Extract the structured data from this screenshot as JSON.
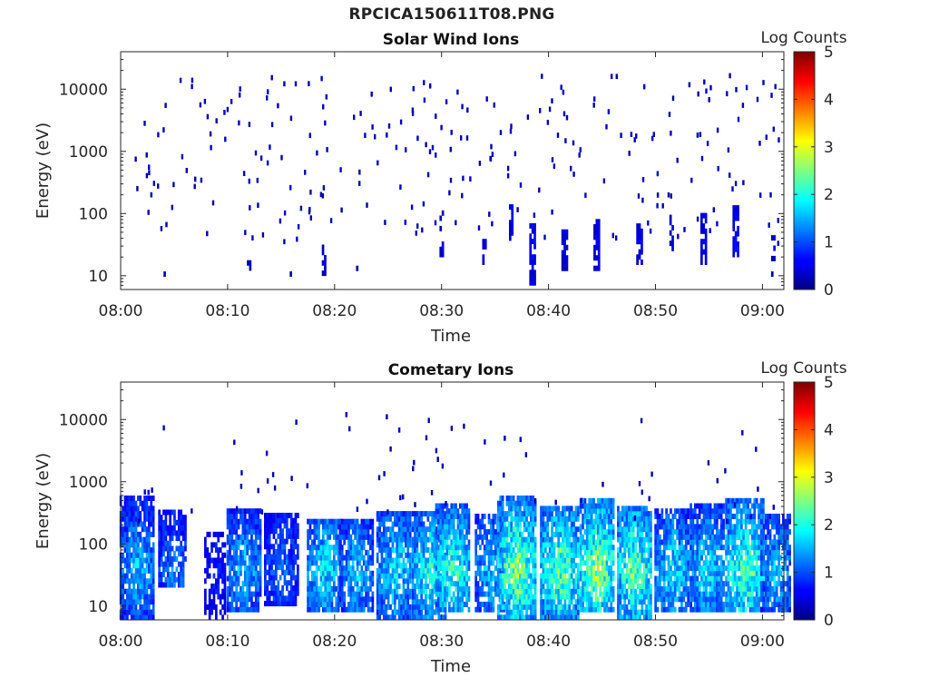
{
  "figure": {
    "title": "RPCICA150611T08.PNG"
  },
  "colors": {
    "jet_low": "#00007f",
    "jet_high": "#7f0000",
    "axis": "#262626",
    "background": "#ffffff"
  },
  "chart_data": [
    {
      "type": "heatmap",
      "title": "Solar Wind Ions",
      "xlabel": "Time",
      "ylabel": "Energy (eV)",
      "xticks": [
        "08:00",
        "08:10",
        "08:20",
        "08:30",
        "08:40",
        "08:50",
        "09:00"
      ],
      "xlim_minutes_after_0800": [
        0,
        62
      ],
      "yticks": [
        "10",
        "100",
        "1000",
        "10000"
      ],
      "yscale": "log",
      "ylim_eV": [
        6,
        40000
      ],
      "colorbar": {
        "label": "Log Counts",
        "ticks": [
          "0",
          "1",
          "2",
          "3",
          "4",
          "5"
        ],
        "range": [
          0,
          5
        ]
      },
      "bursts": [
        {
          "t": 4.0,
          "emin": 8,
          "emax": 18,
          "peak": 0.4,
          "extent": 0.2,
          "density": 0.3
        },
        {
          "t": 12.0,
          "emin": 10,
          "emax": 18,
          "peak": 0.4,
          "extent": 0.2,
          "density": 0.3
        },
        {
          "t": 16.0,
          "emin": 8,
          "emax": 18,
          "peak": 0.4,
          "extent": 0.2,
          "density": 0.3
        },
        {
          "t": 19.0,
          "emin": 10,
          "emax": 35,
          "peak": 0.5,
          "extent": 0.2,
          "density": 0.5
        },
        {
          "t": 22.0,
          "emin": 12,
          "emax": 20,
          "peak": 0.4,
          "extent": 0.2,
          "density": 0.3
        },
        {
          "t": 30.0,
          "emin": 20,
          "emax": 100,
          "peak": 0.5,
          "extent": 0.2,
          "density": 0.5
        },
        {
          "t": 34.0,
          "emin": 15,
          "emax": 40,
          "peak": 0.5,
          "extent": 0.2,
          "density": 0.4
        },
        {
          "t": 36.5,
          "emin": 25,
          "emax": 150,
          "peak": 0.6,
          "extent": 0.2,
          "density": 0.6
        },
        {
          "t": 38.5,
          "emin": 7,
          "emax": 60,
          "peak": 0.7,
          "extent": 0.3,
          "density": 0.8
        },
        {
          "t": 41.5,
          "emin": 12,
          "emax": 50,
          "peak": 0.6,
          "extent": 0.3,
          "density": 0.8
        },
        {
          "t": 44.5,
          "emin": 12,
          "emax": 70,
          "peak": 0.6,
          "extent": 0.3,
          "density": 0.8
        },
        {
          "t": 48.5,
          "emin": 15,
          "emax": 60,
          "peak": 0.6,
          "extent": 0.3,
          "density": 0.8
        },
        {
          "t": 51.5,
          "emin": 25,
          "emax": 80,
          "peak": 0.5,
          "extent": 0.2,
          "density": 0.5
        },
        {
          "t": 54.5,
          "emin": 15,
          "emax": 100,
          "peak": 0.6,
          "extent": 0.3,
          "density": 0.7
        },
        {
          "t": 57.5,
          "emin": 20,
          "emax": 120,
          "peak": 0.7,
          "extent": 0.3,
          "density": 0.8
        },
        {
          "t": 61.0,
          "emin": 8,
          "emax": 40,
          "peak": 0.4,
          "extent": 0.2,
          "density": 0.4
        }
      ],
      "sparse_background": {
        "count": 260,
        "emin": 30,
        "emax": 15000,
        "level": 0.3
      }
    },
    {
      "type": "heatmap",
      "title": "Cometary Ions",
      "xlabel": "Time",
      "ylabel": "Energy (eV)",
      "xticks": [
        "08:00",
        "08:10",
        "08:20",
        "08:30",
        "08:40",
        "08:50",
        "09:00"
      ],
      "xlim_minutes_after_0800": [
        0,
        62
      ],
      "yticks": [
        "10",
        "100",
        "1000",
        "10000"
      ],
      "yscale": "log",
      "ylim_eV": [
        6,
        40000
      ],
      "colorbar": {
        "label": "Log Counts",
        "ticks": [
          "0",
          "1",
          "2",
          "3",
          "4",
          "5"
        ],
        "range": [
          0,
          5
        ]
      },
      "bursts": [
        {
          "t": 1.5,
          "emin": 6,
          "emax": 500,
          "peak": 1.6,
          "extent": 1.6,
          "density": 0.9
        },
        {
          "t": 4.8,
          "emin": 20,
          "emax": 300,
          "peak": 1.3,
          "extent": 1.3,
          "density": 0.8
        },
        {
          "t": 8.8,
          "emin": 6,
          "emax": 150,
          "peak": 0.8,
          "extent": 1.0,
          "density": 0.6
        },
        {
          "t": 11.5,
          "emin": 8,
          "emax": 350,
          "peak": 1.6,
          "extent": 1.6,
          "density": 0.85
        },
        {
          "t": 15.0,
          "emin": 10,
          "emax": 300,
          "peak": 1.2,
          "extent": 1.6,
          "density": 0.8
        },
        {
          "t": 19.0,
          "emin": 8,
          "emax": 250,
          "peak": 1.8,
          "extent": 1.6,
          "density": 0.85
        },
        {
          "t": 22.0,
          "emin": 8,
          "emax": 250,
          "peak": 1.6,
          "extent": 1.6,
          "density": 0.85
        },
        {
          "t": 25.5,
          "emin": 6,
          "emax": 300,
          "peak": 1.8,
          "extent": 1.6,
          "density": 0.85
        },
        {
          "t": 28.8,
          "emin": 6,
          "emax": 300,
          "peak": 2.0,
          "extent": 1.6,
          "density": 0.85
        },
        {
          "t": 31.0,
          "emin": 8,
          "emax": 400,
          "peak": 2.2,
          "extent": 1.6,
          "density": 0.85
        },
        {
          "t": 34.5,
          "emin": 8,
          "emax": 300,
          "peak": 1.6,
          "extent": 1.4,
          "density": 0.8
        },
        {
          "t": 37.0,
          "emin": 6,
          "emax": 500,
          "peak": 2.6,
          "extent": 1.8,
          "density": 0.9
        },
        {
          "t": 41.0,
          "emin": 6,
          "emax": 400,
          "peak": 2.4,
          "extent": 1.8,
          "density": 0.9
        },
        {
          "t": 44.5,
          "emin": 8,
          "emax": 450,
          "peak": 2.6,
          "extent": 1.6,
          "density": 0.9
        },
        {
          "t": 48.0,
          "emin": 6,
          "emax": 400,
          "peak": 2.4,
          "extent": 1.6,
          "density": 0.9
        },
        {
          "t": 51.5,
          "emin": 8,
          "emax": 350,
          "peak": 1.8,
          "extent": 1.6,
          "density": 0.85
        },
        {
          "t": 54.8,
          "emin": 8,
          "emax": 400,
          "peak": 1.8,
          "extent": 1.6,
          "density": 0.85
        },
        {
          "t": 58.3,
          "emin": 8,
          "emax": 500,
          "peak": 2.4,
          "extent": 1.8,
          "density": 0.9
        },
        {
          "t": 61.2,
          "emin": 8,
          "emax": 300,
          "peak": 1.6,
          "extent": 1.4,
          "density": 0.8
        }
      ],
      "sparse_background": {
        "count": 70,
        "emin": 200,
        "emax": 12000,
        "level": 0.3
      }
    }
  ]
}
